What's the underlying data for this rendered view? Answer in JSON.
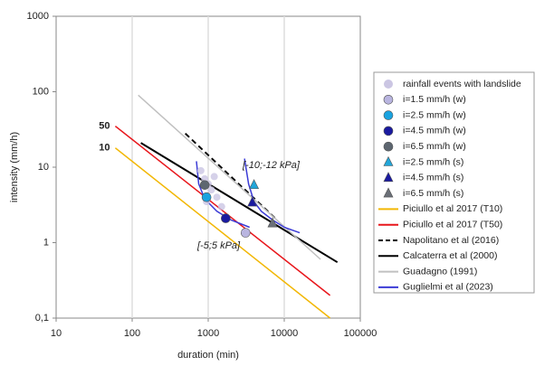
{
  "chart_data": {
    "type": "scatter",
    "xlabel": "duration (min)",
    "ylabel": "intensity (mm/h)",
    "log_x": true,
    "log_y": true,
    "xlim": [
      10,
      100000
    ],
    "ylim": [
      0.1,
      1000
    ],
    "xticks": [
      10,
      100,
      1000,
      10000,
      100000
    ],
    "yticks": [
      {
        "value": 0.1,
        "label": "0,1"
      },
      1,
      10,
      100,
      1000
    ],
    "grid_x": true,
    "legend": "right",
    "series": [
      {
        "name": "rainfall events with landslide",
        "color": "#cbc6e3",
        "marker": "circle",
        "x": [
          800,
          900,
          1000,
          1100,
          1200,
          1300,
          950,
          1500
        ],
        "values": [
          9,
          7,
          6,
          5,
          7.5,
          4,
          3.5,
          3
        ]
      },
      {
        "name": "i=1.5 mm/h (w)",
        "color": "#b9b5e0",
        "marker": "circle",
        "x": [
          3100
        ],
        "values": [
          1.35
        ]
      },
      {
        "name": "i=2.5 mm/h (w)",
        "color": "#1aa3e0",
        "marker": "circle",
        "x": [
          950
        ],
        "values": [
          4
        ]
      },
      {
        "name": "i=4.5 mm/h (w)",
        "color": "#1a1aa0",
        "marker": "circle",
        "x": [
          1700
        ],
        "values": [
          2.1
        ]
      },
      {
        "name": "i=6.5 mm/h (w)",
        "color": "#5d6670",
        "marker": "circle",
        "x": [
          900
        ],
        "values": [
          5.8
        ]
      },
      {
        "name": "i=2.5 mm/h (s)",
        "color": "#22a6d9",
        "marker": "triangle",
        "x": [
          4000
        ],
        "values": [
          5.8
        ]
      },
      {
        "name": "i=4.5 mm/h (s)",
        "color": "#1a1aa0",
        "marker": "triangle",
        "x": [
          3800
        ],
        "values": [
          3.4
        ]
      },
      {
        "name": "i=6.5 mm/h (s)",
        "color": "#6b7078",
        "marker": "triangle",
        "x": [
          7000
        ],
        "values": [
          1.8
        ]
      },
      {
        "name": "Piciullo et al 2017 (T10)",
        "color": "#f2b705",
        "line": "solid",
        "label": "10",
        "x": [
          60,
          40000
        ],
        "values": [
          18,
          0.1
        ]
      },
      {
        "name": "Piciullo et al 2017 (T50)",
        "color": "#e8161b",
        "line": "solid",
        "label": "50",
        "x": [
          60,
          40000
        ],
        "values": [
          35,
          0.2
        ]
      },
      {
        "name": "Napolitano et al (2016)",
        "color": "#000000",
        "line": "dashed",
        "x": [
          500,
          8000
        ],
        "values": [
          28,
          2
        ]
      },
      {
        "name": "Calcaterra et al (2000)",
        "color": "#000000",
        "line": "solid",
        "x": [
          130,
          50000
        ],
        "values": [
          21,
          0.55
        ]
      },
      {
        "name": "Guadagno (1991)",
        "color": "#c0c0c0",
        "line": "solid",
        "x": [
          120,
          30000
        ],
        "values": [
          90,
          0.6
        ]
      },
      {
        "name": "Guglielmi et al (2023)",
        "color": "#3b3bd6",
        "line": "solid",
        "x": [
          3000,
          3400,
          4000,
          5000,
          7000,
          10000,
          16000,
          null,
          700,
          750,
          900,
          1300,
          2000,
          3500
        ],
        "values": [
          13,
          6,
          3.5,
          2.6,
          2,
          1.6,
          1.35,
          null,
          12,
          6,
          3.8,
          2.6,
          2,
          1.6
        ]
      }
    ],
    "annotations": [
      "[-10;-12 kPa]",
      "[-5;5 kPa]"
    ]
  }
}
